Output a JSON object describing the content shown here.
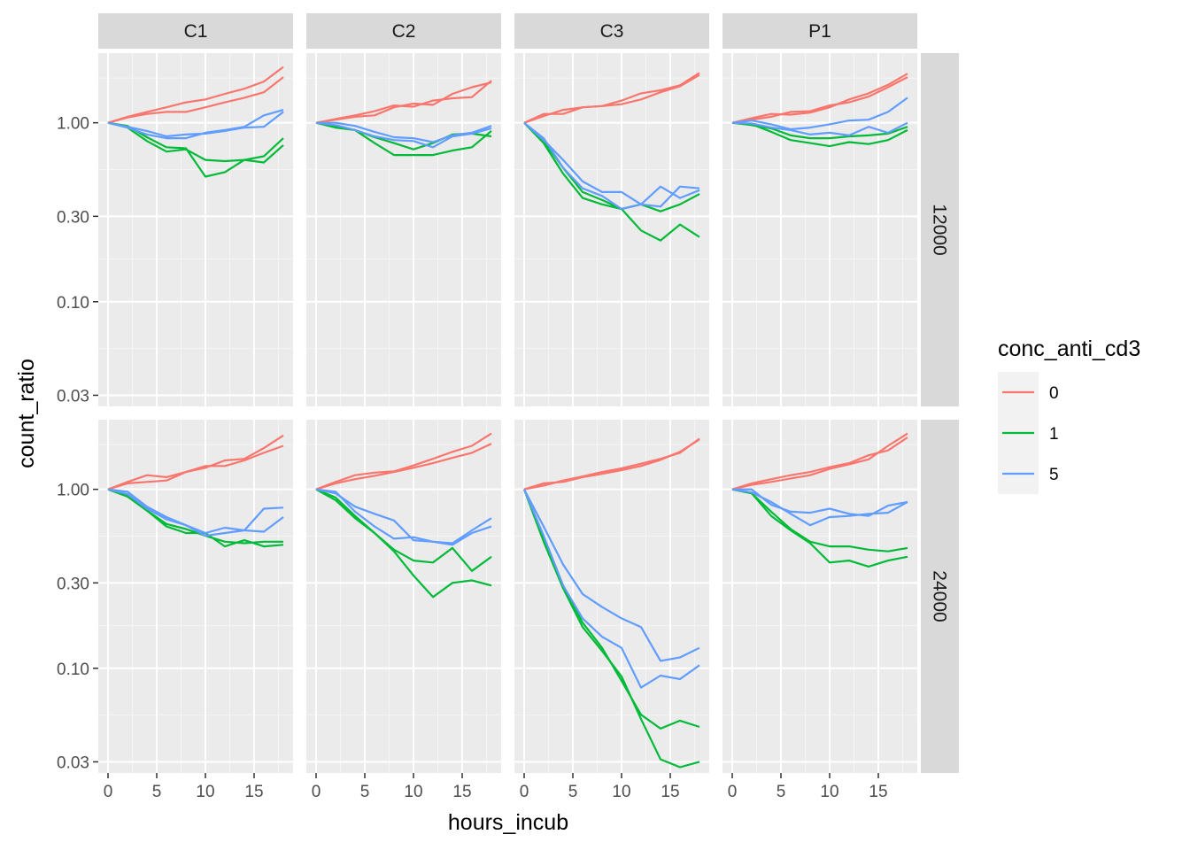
{
  "chart_data": {
    "type": "line",
    "xlabel": "hours_incub",
    "ylabel": "count_ratio",
    "y_scale": "log",
    "xlim": [
      -1,
      19
    ],
    "ylim": [
      0.026,
      2.45
    ],
    "x_ticks": [
      0,
      5,
      10,
      15
    ],
    "y_ticks": [
      0.03,
      0.1,
      0.3,
      1.0
    ],
    "y_tick_labels": [
      "0.03",
      "0.10",
      "0.30",
      "1.00"
    ],
    "x_tick_labels": [
      "0",
      "5",
      "10",
      "15"
    ],
    "grid": true,
    "legend": {
      "title": "conc_anti_cd3",
      "position": "right",
      "entries": [
        {
          "label": "0",
          "color": "#F8766D"
        },
        {
          "label": "1",
          "color": "#00BA38"
        },
        {
          "label": "5",
          "color": "#619CFF"
        }
      ]
    },
    "facet_cols": [
      "C1",
      "C2",
      "C3",
      "P1"
    ],
    "facet_rows": [
      "12000",
      "24000"
    ],
    "x": [
      0,
      2,
      4,
      6,
      8,
      10,
      12,
      14,
      16,
      18
    ],
    "panels": [
      {
        "col": "C1",
        "row": "12000",
        "series": [
          {
            "group": "0",
            "values": [
              1.0,
              1.07,
              1.12,
              1.15,
              1.15,
              1.22,
              1.3,
              1.38,
              1.48,
              1.8
            ]
          },
          {
            "group": "0",
            "values": [
              1.0,
              1.08,
              1.15,
              1.22,
              1.3,
              1.35,
              1.45,
              1.55,
              1.7,
              2.05
            ]
          },
          {
            "group": "1",
            "values": [
              1.0,
              0.96,
              0.83,
              0.73,
              0.72,
              0.5,
              0.53,
              0.62,
              0.6,
              0.75
            ]
          },
          {
            "group": "1",
            "values": [
              1.0,
              0.94,
              0.79,
              0.69,
              0.71,
              0.62,
              0.61,
              0.62,
              0.65,
              0.82
            ]
          },
          {
            "group": "5",
            "values": [
              1.0,
              0.95,
              0.9,
              0.84,
              0.86,
              0.87,
              0.9,
              0.94,
              0.95,
              1.15
            ]
          },
          {
            "group": "5",
            "values": [
              1.0,
              0.94,
              0.86,
              0.82,
              0.82,
              0.88,
              0.91,
              0.95,
              1.1,
              1.18
            ]
          }
        ]
      },
      {
        "col": "C2",
        "row": "12000",
        "series": [
          {
            "group": "0",
            "values": [
              1.0,
              1.05,
              1.1,
              1.16,
              1.25,
              1.23,
              1.33,
              1.37,
              1.39,
              1.72
            ]
          },
          {
            "group": "0",
            "values": [
              1.0,
              1.04,
              1.08,
              1.1,
              1.22,
              1.28,
              1.26,
              1.45,
              1.58,
              1.68
            ]
          },
          {
            "group": "1",
            "values": [
              1.0,
              0.94,
              0.91,
              0.77,
              0.66,
              0.66,
              0.66,
              0.7,
              0.73,
              0.9
            ]
          },
          {
            "group": "1",
            "values": [
              1.0,
              0.96,
              0.91,
              0.83,
              0.77,
              0.71,
              0.77,
              0.86,
              0.87,
              0.84
            ]
          },
          {
            "group": "5",
            "values": [
              1.0,
              0.97,
              0.91,
              0.84,
              0.8,
              0.79,
              0.73,
              0.84,
              0.87,
              0.93
            ]
          },
          {
            "group": "5",
            "values": [
              1.0,
              1.0,
              0.96,
              0.89,
              0.83,
              0.82,
              0.78,
              0.85,
              0.88,
              0.96
            ]
          }
        ]
      },
      {
        "col": "C3",
        "row": "12000",
        "series": [
          {
            "group": "0",
            "values": [
              1.0,
              1.12,
              1.12,
              1.22,
              1.24,
              1.27,
              1.35,
              1.48,
              1.6,
              1.85
            ]
          },
          {
            "group": "0",
            "values": [
              1.0,
              1.09,
              1.18,
              1.22,
              1.24,
              1.33,
              1.46,
              1.52,
              1.62,
              1.9
            ]
          },
          {
            "group": "1",
            "values": [
              1.0,
              0.77,
              0.52,
              0.38,
              0.35,
              0.33,
              0.25,
              0.22,
              0.27,
              0.23
            ]
          },
          {
            "group": "1",
            "values": [
              1.0,
              0.79,
              0.56,
              0.41,
              0.37,
              0.33,
              0.35,
              0.32,
              0.35,
              0.4
            ]
          },
          {
            "group": "5",
            "values": [
              1.0,
              0.8,
              0.62,
              0.47,
              0.41,
              0.41,
              0.35,
              0.44,
              0.38,
              0.42
            ]
          },
          {
            "group": "5",
            "values": [
              1.0,
              0.82,
              0.56,
              0.43,
              0.39,
              0.33,
              0.35,
              0.34,
              0.44,
              0.43
            ]
          }
        ]
      },
      {
        "col": "P1",
        "row": "12000",
        "series": [
          {
            "group": "0",
            "values": [
              1.0,
              1.04,
              1.08,
              1.15,
              1.16,
              1.25,
              1.3,
              1.4,
              1.58,
              1.8
            ]
          },
          {
            "group": "0",
            "values": [
              1.0,
              1.06,
              1.12,
              1.11,
              1.14,
              1.22,
              1.35,
              1.46,
              1.63,
              1.88
            ]
          },
          {
            "group": "1",
            "values": [
              1.0,
              0.97,
              0.93,
              0.85,
              0.82,
              0.82,
              0.84,
              0.85,
              0.87,
              0.95
            ]
          },
          {
            "group": "1",
            "values": [
              1.0,
              0.98,
              0.89,
              0.8,
              0.77,
              0.74,
              0.78,
              0.76,
              0.8,
              0.91
            ]
          },
          {
            "group": "5",
            "values": [
              1.0,
              1.03,
              0.98,
              0.92,
              0.94,
              0.98,
              1.03,
              1.04,
              1.15,
              1.38
            ]
          },
          {
            "group": "5",
            "values": [
              1.0,
              0.99,
              0.94,
              0.91,
              0.86,
              0.88,
              0.85,
              0.95,
              0.88,
              1.0
            ]
          }
        ]
      },
      {
        "col": "C1",
        "row": "24000",
        "series": [
          {
            "group": "0",
            "values": [
              1.0,
              1.08,
              1.1,
              1.12,
              1.25,
              1.32,
              1.45,
              1.48,
              1.7,
              2.0
            ]
          },
          {
            "group": "0",
            "values": [
              1.0,
              1.1,
              1.2,
              1.17,
              1.25,
              1.35,
              1.35,
              1.45,
              1.6,
              1.75
            ]
          },
          {
            "group": "1",
            "values": [
              1.0,
              0.91,
              0.76,
              0.62,
              0.57,
              0.57,
              0.48,
              0.52,
              0.48,
              0.49
            ]
          },
          {
            "group": "1",
            "values": [
              1.0,
              0.92,
              0.76,
              0.64,
              0.6,
              0.55,
              0.51,
              0.5,
              0.51,
              0.51
            ]
          },
          {
            "group": "5",
            "values": [
              1.0,
              0.97,
              0.8,
              0.7,
              0.63,
              0.55,
              0.57,
              0.59,
              0.78,
              0.79
            ]
          },
          {
            "group": "5",
            "values": [
              1.0,
              0.94,
              0.78,
              0.68,
              0.63,
              0.57,
              0.61,
              0.59,
              0.58,
              0.7
            ]
          }
        ]
      },
      {
        "col": "C2",
        "row": "24000",
        "series": [
          {
            "group": "0",
            "values": [
              1.0,
              1.08,
              1.14,
              1.19,
              1.25,
              1.32,
              1.4,
              1.5,
              1.6,
              1.8
            ]
          },
          {
            "group": "0",
            "values": [
              1.0,
              1.1,
              1.2,
              1.24,
              1.26,
              1.36,
              1.48,
              1.62,
              1.75,
              2.05
            ]
          },
          {
            "group": "1",
            "values": [
              1.0,
              0.87,
              0.69,
              0.57,
              0.45,
              0.33,
              0.25,
              0.3,
              0.31,
              0.29
            ]
          },
          {
            "group": "1",
            "values": [
              1.0,
              0.9,
              0.71,
              0.57,
              0.46,
              0.4,
              0.39,
              0.47,
              0.35,
              0.42
            ]
          },
          {
            "group": "5",
            "values": [
              1.0,
              0.95,
              0.8,
              0.73,
              0.67,
              0.52,
              0.51,
              0.5,
              0.59,
              0.69
            ]
          },
          {
            "group": "5",
            "values": [
              1.0,
              0.97,
              0.75,
              0.62,
              0.53,
              0.54,
              0.51,
              0.49,
              0.57,
              0.62
            ]
          }
        ]
      },
      {
        "col": "C3",
        "row": "24000",
        "series": [
          {
            "group": "0",
            "values": [
              1.0,
              1.08,
              1.1,
              1.17,
              1.22,
              1.28,
              1.35,
              1.46,
              1.62,
              1.9
            ]
          },
          {
            "group": "0",
            "values": [
              1.0,
              1.05,
              1.12,
              1.18,
              1.25,
              1.31,
              1.39,
              1.48,
              1.6,
              1.92
            ]
          },
          {
            "group": "1",
            "values": [
              1.0,
              0.51,
              0.28,
              0.17,
              0.125,
              0.09,
              0.052,
              0.031,
              0.028,
              0.03
            ]
          },
          {
            "group": "1",
            "values": [
              1.0,
              0.54,
              0.29,
              0.18,
              0.13,
              0.085,
              0.055,
              0.046,
              0.051,
              0.047
            ]
          },
          {
            "group": "5",
            "values": [
              1.0,
              0.62,
              0.38,
              0.26,
              0.22,
              0.19,
              0.17,
              0.11,
              0.115,
              0.13
            ]
          },
          {
            "group": "5",
            "values": [
              1.0,
              0.55,
              0.29,
              0.19,
              0.15,
              0.13,
              0.078,
              0.091,
              0.087,
              0.104
            ]
          }
        ]
      },
      {
        "col": "P1",
        "row": "24000",
        "series": [
          {
            "group": "0",
            "values": [
              1.0,
              1.08,
              1.14,
              1.2,
              1.25,
              1.33,
              1.4,
              1.55,
              1.65,
              1.95
            ]
          },
          {
            "group": "0",
            "values": [
              1.0,
              1.06,
              1.1,
              1.15,
              1.2,
              1.3,
              1.38,
              1.47,
              1.75,
              2.05
            ]
          },
          {
            "group": "1",
            "values": [
              1.0,
              0.95,
              0.75,
              0.6,
              0.51,
              0.48,
              0.48,
              0.46,
              0.45,
              0.47
            ]
          },
          {
            "group": "1",
            "values": [
              1.0,
              0.95,
              0.71,
              0.59,
              0.5,
              0.39,
              0.4,
              0.37,
              0.4,
              0.42
            ]
          },
          {
            "group": "5",
            "values": [
              1.0,
              0.96,
              0.85,
              0.73,
              0.63,
              0.7,
              0.71,
              0.73,
              0.74,
              0.85
            ]
          },
          {
            "group": "5",
            "values": [
              1.0,
              1.0,
              0.82,
              0.75,
              0.74,
              0.78,
              0.73,
              0.71,
              0.81,
              0.85
            ]
          }
        ]
      }
    ]
  }
}
